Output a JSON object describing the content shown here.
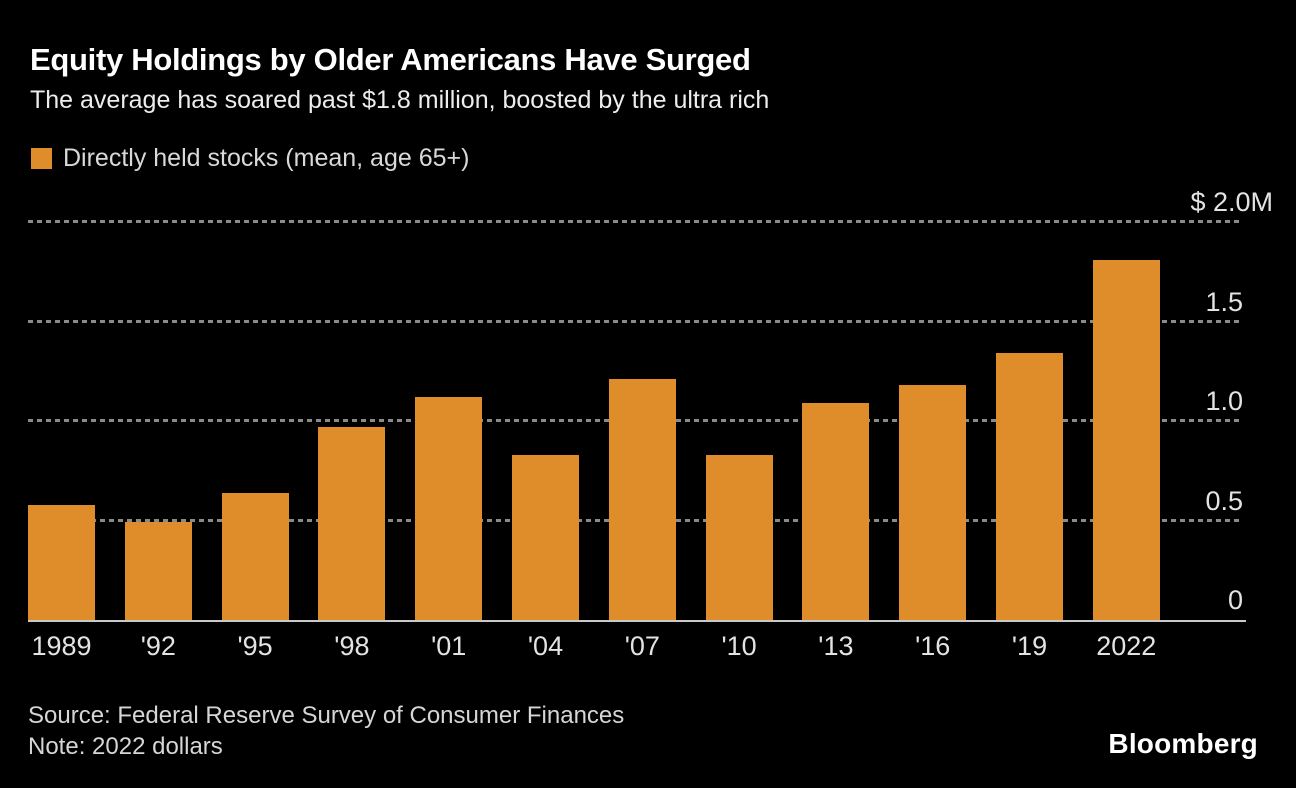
{
  "header": {
    "title": "Equity Holdings by Older Americans Have Surged",
    "subtitle": "The average has soared past $1.8 million, boosted by the ultra rich"
  },
  "legend": {
    "label": "Directly held stocks (mean, age 65+)",
    "swatch_color": "#DF8C2A"
  },
  "footer": {
    "source": "Source: Federal Reserve Survey of Consumer Finances",
    "note": "Note: 2022 dollars",
    "brand": "Bloomberg"
  },
  "colors": {
    "background": "#000000",
    "bar": "#DF8C2A",
    "gridline": "#8a8a8a",
    "axis_line": "#c9c9c9",
    "title_text": "#ffffff",
    "muted_text": "#d9d9d9"
  },
  "chart_data": {
    "type": "bar",
    "title": "Equity Holdings by Older Americans Have Surged",
    "subtitle": "The average has soared past $1.8 million, boosted by the ultra rich",
    "series_name": "Directly held stocks (mean, age 65+)",
    "unit": "millions of USD, 2022 dollars",
    "categories": [
      "1989",
      "'92",
      "'95",
      "'98",
      "'01",
      "'04",
      "'07",
      "'10",
      "'13",
      "'16",
      "'19",
      "2022"
    ],
    "values": [
      0.58,
      0.49,
      0.64,
      0.97,
      1.12,
      0.83,
      1.21,
      0.83,
      1.09,
      1.18,
      1.34,
      1.81
    ],
    "ylim": [
      0,
      2.0
    ],
    "y_ticks": [
      {
        "value": 0,
        "label": "0"
      },
      {
        "value": 0.5,
        "label": "0.5"
      },
      {
        "value": 1.0,
        "label": "1.0"
      },
      {
        "value": 1.5,
        "label": "1.5"
      },
      {
        "value": 2.0,
        "label": "$ 2.0M"
      }
    ],
    "grid": "dotted horizontal lines, on",
    "legend_position": "top-left"
  }
}
